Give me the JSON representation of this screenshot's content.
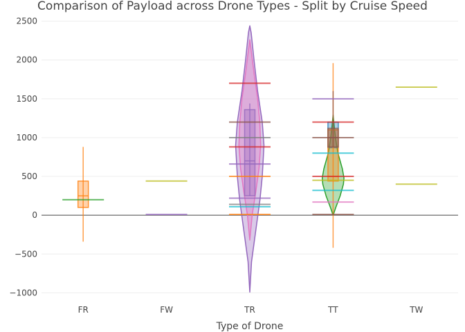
{
  "chart_data": {
    "type": "violin",
    "title": "Comparison of Payload across Drone Types - Split by Cruise Speed",
    "xlabel": "Type of Drone",
    "ylabel": "",
    "categories": [
      "FR",
      "FW",
      "TR",
      "TT",
      "TW"
    ],
    "ylim": [
      -1050,
      2550
    ],
    "yticks": [
      -1000,
      -500,
      0,
      500,
      1000,
      1500,
      2000,
      2500
    ],
    "ytick_labels": [
      "−1000",
      "−500",
      "0",
      "500",
      "1000",
      "1500",
      "2000",
      "2500"
    ],
    "grid": true,
    "colors": {
      "orange": "#ff7f0e",
      "green": "#2ca02c",
      "red": "#d62728",
      "purple": "#9467bd",
      "pink": "#e377c2",
      "olive": "#bcbd22",
      "cyan": "#17becf",
      "brown": "#8c564b",
      "blue": "#1f77b4",
      "gray": "#7f7f7f"
    },
    "violins": [
      {
        "category": "TR",
        "color": "purple",
        "halfwidth": 0.17,
        "opacity": 0.35,
        "profile": [
          [
            -990,
            0.0
          ],
          [
            -600,
            0.12
          ],
          [
            -200,
            0.42
          ],
          [
            200,
            0.72
          ],
          [
            500,
            0.88
          ],
          [
            900,
            1.0
          ],
          [
            1200,
            0.88
          ],
          [
            1600,
            0.55
          ],
          [
            2000,
            0.3
          ],
          [
            2350,
            0.1
          ],
          [
            2440,
            0.0
          ]
        ]
      },
      {
        "category": "TR",
        "color": "pink",
        "halfwidth": 0.13,
        "opacity": 0.35,
        "profile": [
          [
            -320,
            0.0
          ],
          [
            0,
            0.22
          ],
          [
            300,
            0.55
          ],
          [
            600,
            0.85
          ],
          [
            900,
            1.0
          ],
          [
            1200,
            0.92
          ],
          [
            1500,
            0.72
          ],
          [
            1800,
            0.42
          ],
          [
            2100,
            0.15
          ],
          [
            2260,
            0.0
          ]
        ]
      },
      {
        "category": "TT",
        "color": "green",
        "halfwidth": 0.13,
        "opacity": 0.35,
        "profile": [
          [
            0,
            0.0
          ],
          [
            100,
            0.25
          ],
          [
            250,
            0.65
          ],
          [
            400,
            0.95
          ],
          [
            480,
            1.0
          ],
          [
            600,
            0.85
          ],
          [
            800,
            0.45
          ],
          [
            1000,
            0.22
          ],
          [
            1150,
            0.1
          ],
          [
            1290,
            0.0
          ]
        ]
      }
    ],
    "boxes": [
      {
        "category": "FR",
        "color": "orange",
        "q1": 100,
        "median": 250,
        "q3": 440,
        "whisker_low": -340,
        "whisker_high": 880
      },
      {
        "category": "TR",
        "color": "purple",
        "q1": 250,
        "median": 700,
        "q3": 1360,
        "whisker_low": 250,
        "whisker_high": 1440
      },
      {
        "category": "TT",
        "color": "blue",
        "q1": 870,
        "median": 1100,
        "q3": 1200,
        "whisker_low": 870,
        "whisker_high": 1200
      },
      {
        "category": "TT",
        "color": "orange",
        "q1": 440,
        "median": 500,
        "q3": 1100,
        "whisker_low": -420,
        "whisker_high": 1960
      },
      {
        "category": "TT",
        "color": "brown",
        "q1": 880,
        "median": 1000,
        "q3": 1120,
        "whisker_low": 880,
        "whisker_high": 1600
      }
    ],
    "lines": [
      {
        "category": "FR",
        "value": 200,
        "color": "green"
      },
      {
        "category": "FW",
        "value": 440,
        "color": "olive"
      },
      {
        "category": "FW",
        "value": 10,
        "color": "purple"
      },
      {
        "category": "TR",
        "value": 1700,
        "color": "red"
      },
      {
        "category": "TR",
        "value": 1200,
        "color": "brown"
      },
      {
        "category": "TR",
        "value": 1000,
        "color": "gray"
      },
      {
        "category": "TR",
        "value": 880,
        "color": "red"
      },
      {
        "category": "TR",
        "value": 660,
        "color": "purple"
      },
      {
        "category": "TR",
        "value": 500,
        "color": "orange"
      },
      {
        "category": "TR",
        "value": 220,
        "color": "purple"
      },
      {
        "category": "TR",
        "value": 140,
        "color": "gray"
      },
      {
        "category": "TR",
        "value": 110,
        "color": "cyan"
      },
      {
        "category": "TR",
        "value": 10,
        "color": "orange"
      },
      {
        "category": "TT",
        "value": 1500,
        "color": "purple"
      },
      {
        "category": "TT",
        "value": 1200,
        "color": "red"
      },
      {
        "category": "TT",
        "value": 1000,
        "color": "brown"
      },
      {
        "category": "TT",
        "value": 800,
        "color": "cyan"
      },
      {
        "category": "TT",
        "value": 500,
        "color": "red"
      },
      {
        "category": "TT",
        "value": 450,
        "color": "olive"
      },
      {
        "category": "TT",
        "value": 320,
        "color": "cyan"
      },
      {
        "category": "TT",
        "value": 170,
        "color": "pink"
      },
      {
        "category": "TT",
        "value": 10,
        "color": "brown"
      },
      {
        "category": "TW",
        "value": 1650,
        "color": "olive"
      },
      {
        "category": "TW",
        "value": 400,
        "color": "olive"
      }
    ]
  }
}
